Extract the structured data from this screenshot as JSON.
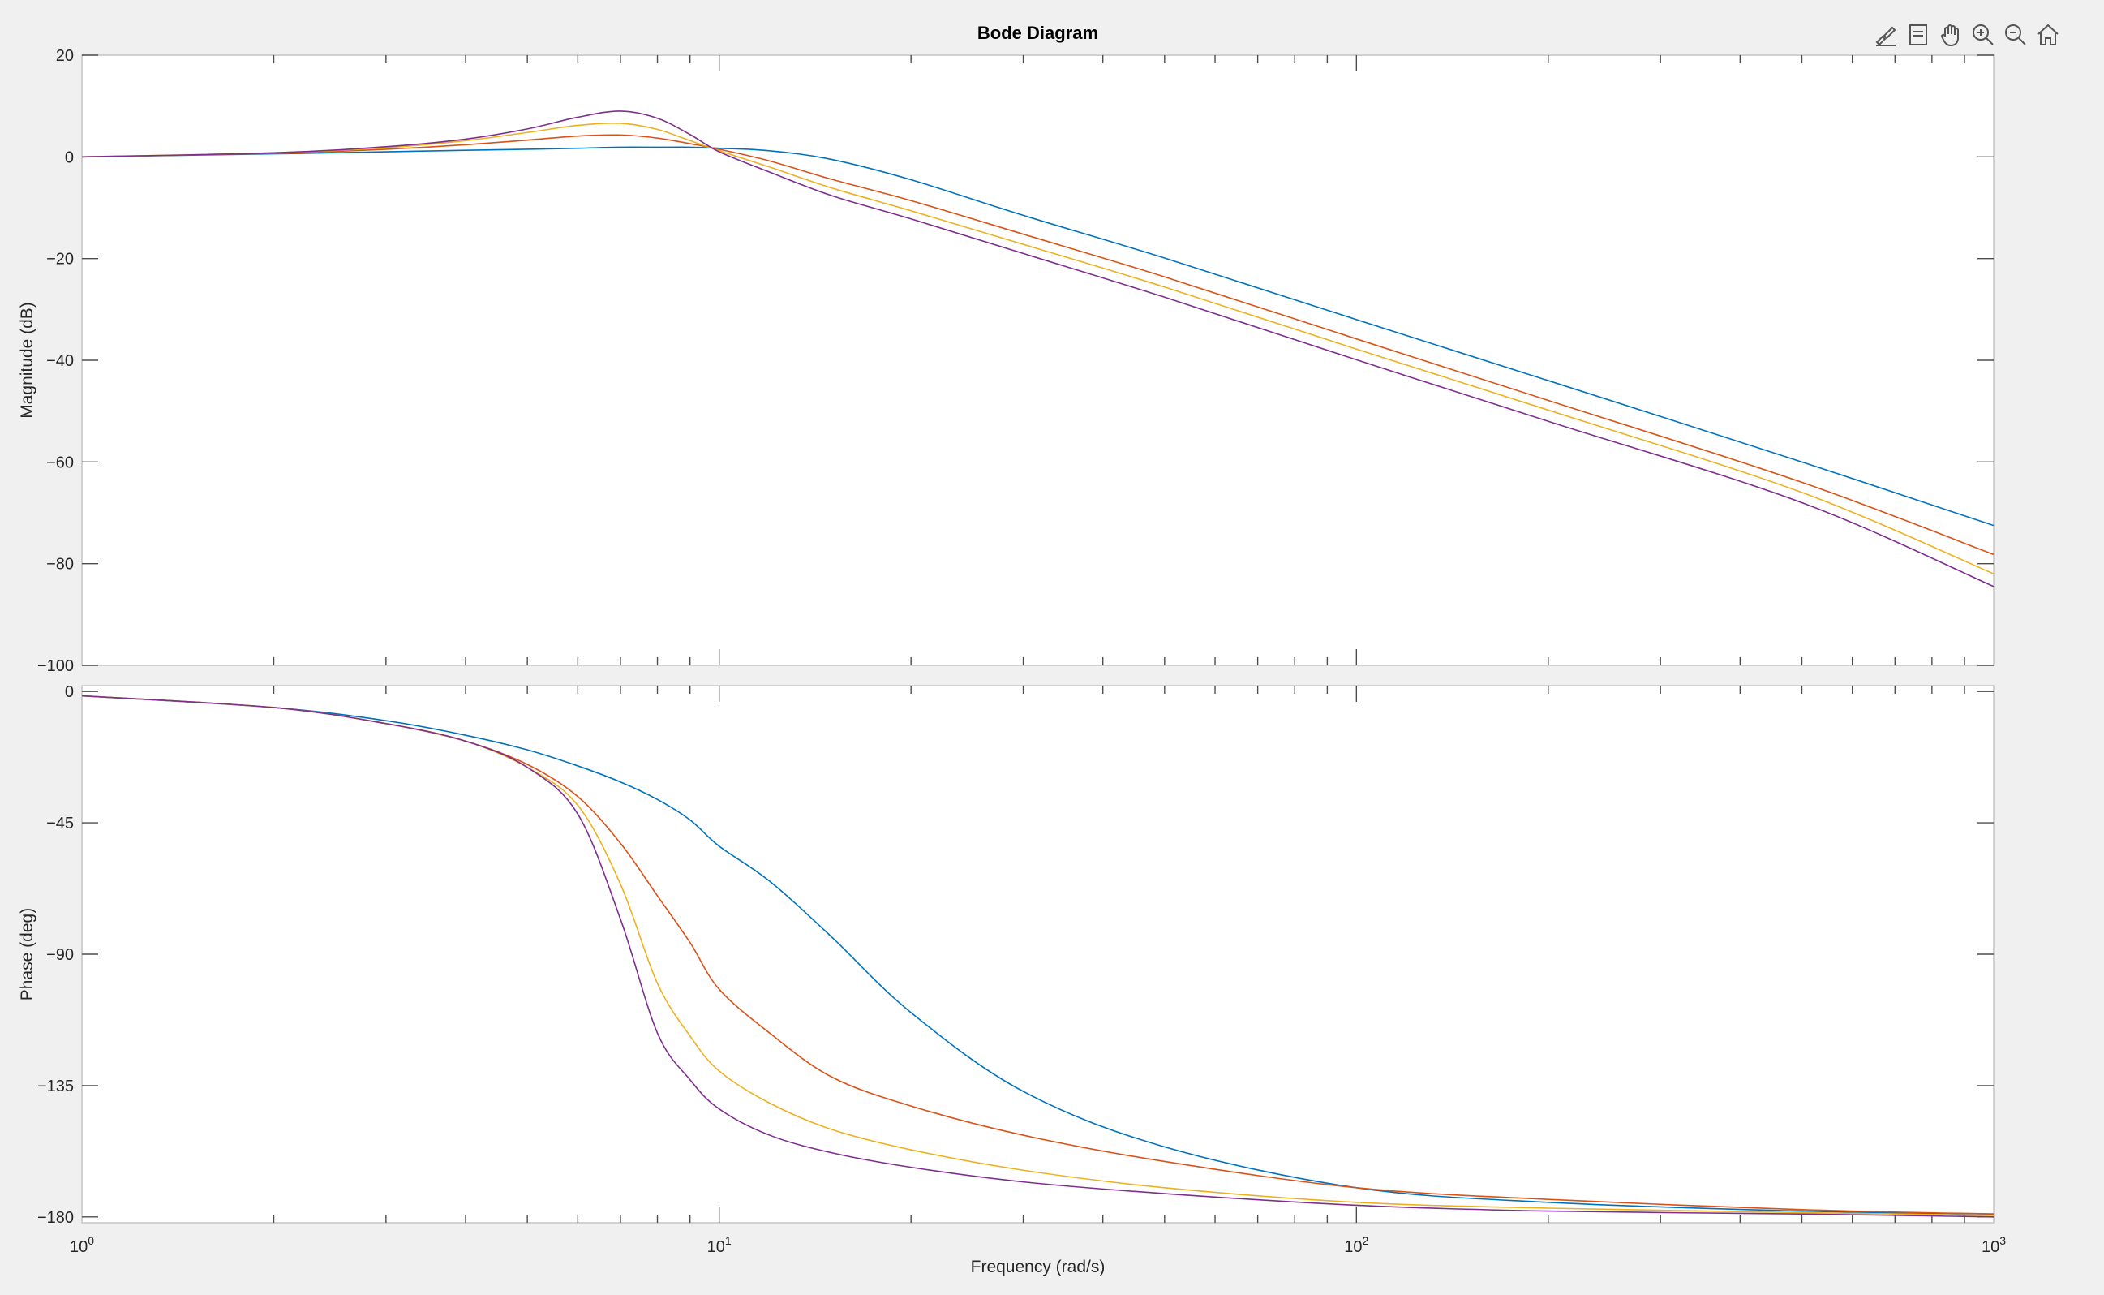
{
  "window": {
    "toolbar": [
      {
        "name": "brush-icon",
        "label": "Brush/Select data"
      },
      {
        "name": "datatip-icon",
        "label": "Data tips"
      },
      {
        "name": "pan-icon",
        "label": "Pan"
      },
      {
        "name": "zoom-in-icon",
        "label": "Zoom in"
      },
      {
        "name": "zoom-out-icon",
        "label": "Zoom out"
      },
      {
        "name": "home-icon",
        "label": "Restore view"
      }
    ]
  },
  "colors": {
    "series": [
      "#0072BD",
      "#D95319",
      "#EDB120",
      "#7E2F8E"
    ],
    "axes_bg": "#ffffff",
    "figure_bg": "#f0f0f0",
    "text": "#262626"
  },
  "chart_data": [
    {
      "type": "line",
      "title": "Bode Diagram",
      "xlabel": "",
      "ylabel": "Magnitude (dB)",
      "xscale": "log",
      "xlim": [
        1,
        1000
      ],
      "ylim": [
        -100,
        20
      ],
      "yticks": [
        "20",
        "0",
        "-20",
        "-40",
        "-60",
        "-80",
        "-100"
      ],
      "grid": false,
      "series": [
        {
          "x": [
            1,
            2,
            3,
            4,
            5,
            6,
            7,
            8,
            9,
            10,
            12,
            15,
            20,
            30,
            50,
            100,
            200,
            500,
            1000
          ],
          "values": [
            0,
            0.6,
            1.0,
            1.3,
            1.5,
            1.7,
            1.9,
            1.9,
            1.9,
            1.7,
            1.2,
            -0.5,
            -4.5,
            -11.5,
            -19.9,
            -32.0,
            -44.0,
            -60.0,
            -72.5
          ]
        },
        {
          "x": [
            1,
            2,
            3,
            4,
            5,
            6,
            7,
            8,
            9,
            10,
            12,
            15,
            20,
            30,
            50,
            100,
            200,
            500,
            1000
          ],
          "values": [
            0,
            0.7,
            1.5,
            2.4,
            3.3,
            4.1,
            4.3,
            3.7,
            2.6,
            1.5,
            -0.8,
            -4.4,
            -8.6,
            -15.2,
            -23.6,
            -35.8,
            -47.9,
            -64.0,
            -78.2
          ]
        },
        {
          "x": [
            1,
            2,
            3,
            4,
            5,
            6,
            7,
            8,
            9,
            10,
            12,
            15,
            20,
            30,
            50,
            100,
            200,
            500,
            1000
          ],
          "values": [
            0,
            0.8,
            1.8,
            3.2,
            4.8,
            6.2,
            6.6,
            5.4,
            3.2,
            1.2,
            -2.0,
            -6.1,
            -10.6,
            -17.2,
            -25.6,
            -37.8,
            -49.8,
            -66.0,
            -82.0
          ]
        },
        {
          "x": [
            1,
            2,
            3,
            4,
            5,
            6,
            7,
            8,
            9,
            10,
            12,
            15,
            20,
            30,
            50,
            100,
            200,
            500,
            1000
          ],
          "values": [
            0,
            0.8,
            2.0,
            3.5,
            5.5,
            7.8,
            9.0,
            7.6,
            4.4,
            1.0,
            -3.0,
            -7.6,
            -12.2,
            -19.0,
            -27.6,
            -39.9,
            -52.0,
            -68.0,
            -84.5
          ]
        }
      ]
    },
    {
      "type": "line",
      "title": "",
      "xlabel": "Frequency  (rad/s)",
      "ylabel": "Phase (deg)",
      "xscale": "log",
      "xlim": [
        1,
        1000
      ],
      "ylim": [
        -182,
        2
      ],
      "yticks": [
        "0",
        "-45",
        "-90",
        "-135",
        "-180"
      ],
      "xticks": [
        "0",
        "1",
        "2",
        "3"
      ],
      "grid": false,
      "series": [
        {
          "x": [
            1,
            2,
            3,
            4,
            5,
            6,
            7,
            8,
            9,
            10,
            12,
            15,
            20,
            30,
            50,
            100,
            200,
            500,
            1000
          ],
          "values": [
            -1.5,
            -5.5,
            -10,
            -15,
            -20,
            -25.5,
            -31,
            -37,
            -44,
            -53,
            -65,
            -84,
            -110,
            -137,
            -156,
            -170,
            -175,
            -178,
            -179
          ]
        },
        {
          "x": [
            1,
            2,
            3,
            4,
            5,
            6,
            7,
            8,
            9,
            10,
            12,
            15,
            20,
            30,
            50,
            100,
            200,
            500,
            1000
          ],
          "values": [
            -1.5,
            -5.5,
            -11,
            -17,
            -25,
            -36,
            -52,
            -70,
            -86,
            -102,
            -117,
            -132,
            -142,
            -152,
            -161,
            -170,
            -174,
            -177.5,
            -179
          ]
        },
        {
          "x": [
            1,
            2,
            3,
            4,
            5,
            6,
            7,
            8,
            9,
            10,
            12,
            15,
            20,
            30,
            50,
            100,
            200,
            500,
            1000
          ],
          "values": [
            -1.5,
            -5.5,
            -11,
            -17,
            -26,
            -39,
            -66,
            -100,
            -118,
            -130,
            -141,
            -150,
            -157,
            -164,
            -170,
            -175,
            -177,
            -178.5,
            -179.5
          ]
        },
        {
          "x": [
            1,
            2,
            3,
            4,
            5,
            6,
            7,
            8,
            9,
            10,
            12,
            15,
            20,
            30,
            50,
            100,
            200,
            500,
            1000
          ],
          "values": [
            -1.5,
            -5.5,
            -11,
            -17,
            -26,
            -42,
            -78,
            -117,
            -133,
            -143,
            -152,
            -158,
            -163,
            -168,
            -172,
            -176,
            -178,
            -179,
            -180
          ]
        }
      ]
    }
  ]
}
